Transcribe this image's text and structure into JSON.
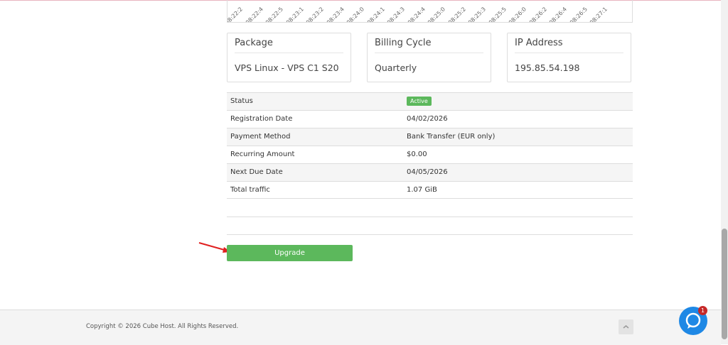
{
  "chart_ticks": [
    "08:22:2",
    "08:22:4",
    "08:22:5",
    "08:23:1",
    "08:23:2",
    "08:23:4",
    "08:24:0",
    "08:24:1",
    "08:24:3",
    "08:24:4",
    "08:25:0",
    "08:25:2",
    "08:25:3",
    "08:25:5",
    "08:26:0",
    "08:26:2",
    "08:26:4",
    "08:26:5",
    "08:27:1"
  ],
  "cards": [
    {
      "title": "Package",
      "value": "VPS Linux - VPS C1 S20"
    },
    {
      "title": "Billing Cycle",
      "value": "Quarterly"
    },
    {
      "title": "IP Address",
      "value": "195.85.54.198"
    }
  ],
  "table": {
    "rows": [
      [
        "Status",
        "Active"
      ],
      [
        "Registration Date",
        "04/02/2026"
      ],
      [
        "Payment Method",
        "Bank Transfer (EUR only)"
      ],
      [
        "Recurring Amount",
        "$0.00"
      ],
      [
        "Next Due Date",
        "04/05/2026"
      ],
      [
        "Total traffic",
        "1.07 GiB"
      ]
    ]
  },
  "button": "Upgrade",
  "footer": {
    "copyright": "Copyright © 2026 Cube Host. All Rights Reserved."
  },
  "chat": {
    "badge": "1"
  }
}
